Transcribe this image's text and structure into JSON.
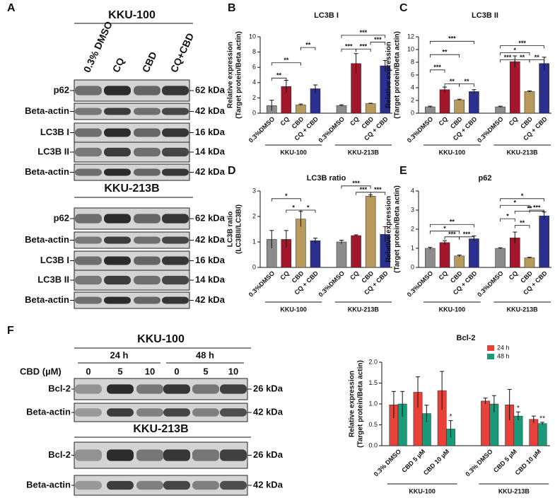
{
  "panel_a": {
    "label": "A",
    "columns": [
      "0.3% DMSO",
      "CQ",
      "CBD",
      "CQ+CBD"
    ],
    "sections": [
      {
        "title": "KKU-100",
        "rows": [
          {
            "name": "p62",
            "kda": "62 kDa"
          },
          {
            "name": "Beta-actin",
            "kda": "42 kDa"
          },
          {
            "name": "LC3B I",
            "kda": "16 kDa"
          },
          {
            "name": "LC3B II",
            "kda": "14 kDa"
          },
          {
            "name": "Beta-actin",
            "kda": "42 kDa"
          }
        ]
      },
      {
        "title": "KKU-213B",
        "rows": [
          {
            "name": "p62",
            "kda": "62 kDa"
          },
          {
            "name": "Beta-actin",
            "kda": "42 kDa"
          },
          {
            "name": "LC3B I",
            "kda": "16 kDa"
          },
          {
            "name": "LC3B II",
            "kda": "14 kDa"
          },
          {
            "name": "Beta-actin",
            "kda": "42 kDa"
          }
        ]
      }
    ]
  },
  "panel_f": {
    "label": "F",
    "times": [
      "24 h",
      "48 h"
    ],
    "dose_label": "CBD (µM)",
    "doses": [
      "0",
      "5",
      "10",
      "0",
      "5",
      "10"
    ],
    "sections": [
      {
        "title": "KKU-100",
        "rows": [
          {
            "name": "Bcl-2",
            "kda": "26 kDa"
          },
          {
            "name": "Beta-actin",
            "kda": "42 kDa"
          }
        ]
      },
      {
        "title": "KKU-213B",
        "rows": [
          {
            "name": "Bcl-2",
            "kda": "26 kDa"
          },
          {
            "name": "Beta-actin",
            "kda": "42 kDa"
          }
        ]
      }
    ]
  },
  "chart_data": [
    {
      "panel": "B",
      "type": "bar",
      "title": "LC3B I",
      "ylabel": [
        "Relative expression",
        "(Target protein/Beta actin)"
      ],
      "categories": [
        "0.3%DMSO",
        "CQ",
        "CBD",
        "CQ + CBD",
        "0.3%DMSO",
        "CQ",
        "CBD",
        "CQ + CBD"
      ],
      "groups": [
        "KKU-100",
        "KKU-213B"
      ],
      "values": [
        1.0,
        3.5,
        1.1,
        3.2,
        1.0,
        6.5,
        1.25,
        6.2
      ],
      "errors": [
        0.7,
        0.8,
        0.1,
        0.5,
        0.1,
        1.3,
        0.05,
        0.7
      ],
      "colors": [
        "#8c8c8c",
        "#a3162b",
        "#b89a5a",
        "#2b2f8e"
      ],
      "ylim": [
        0,
        10
      ],
      "yticks": [
        0,
        2,
        4,
        6,
        8,
        10
      ],
      "brackets": [
        {
          "text": "**",
          "from": 0,
          "to": 1,
          "y": 4.6
        },
        {
          "text": "**",
          "from": 0,
          "to": 2,
          "y": 6.6
        },
        {
          "text": "**",
          "from": 2,
          "to": 3,
          "y": 8.6
        },
        {
          "text": "***",
          "from": 4,
          "to": 7,
          "y": 10.2
        },
        {
          "text": "***",
          "from": 4,
          "to": 5,
          "y": 8.4
        },
        {
          "text": "***",
          "from": 5,
          "to": 6,
          "y": 8.4
        },
        {
          "text": "***",
          "from": 6,
          "to": 7,
          "y": 9.3
        }
      ]
    },
    {
      "panel": "C",
      "type": "bar",
      "title": "LC3B II",
      "ylabel": [
        "Relative expression",
        "(Target protein/Beta actin)"
      ],
      "categories": [
        "0.3%DMSO",
        "CQ",
        "CBD",
        "CQ + CBD",
        "0.3%DMSO",
        "CQ",
        "CBD",
        "CQ + CBD"
      ],
      "groups": [
        "KKU-100",
        "KKU-213B"
      ],
      "values": [
        1.0,
        3.7,
        2.1,
        3.4,
        1.0,
        8.1,
        3.4,
        7.8
      ],
      "errors": [
        0.1,
        0.4,
        0.1,
        0.3,
        0.1,
        0.9,
        0.1,
        1.0
      ],
      "colors": [
        "#8c8c8c",
        "#a3162b",
        "#b89a5a",
        "#2b2f8e"
      ],
      "ylim": [
        0,
        12
      ],
      "yticks": [
        0,
        2,
        4,
        6,
        8,
        10,
        12
      ],
      "brackets": [
        {
          "text": "***",
          "from": 0,
          "to": 3,
          "y": 11.3
        },
        {
          "text": "**",
          "from": 0,
          "to": 2,
          "y": 9.2
        },
        {
          "text": "***",
          "from": 0,
          "to": 1,
          "y": 6.8
        },
        {
          "text": "**",
          "from": 1,
          "to": 2,
          "y": 4.6
        },
        {
          "text": "**",
          "from": 2,
          "to": 3,
          "y": 4.6
        },
        {
          "text": "***",
          "from": 4,
          "to": 7,
          "y": 10.6
        },
        {
          "text": "*",
          "from": 4,
          "to": 6,
          "y": 9.5
        },
        {
          "text": "***",
          "from": 4,
          "to": 5,
          "y": 8.4
        },
        {
          "text": "**",
          "from": 5,
          "to": 6,
          "y": 8.4
        },
        {
          "text": "**",
          "from": 6,
          "to": 7,
          "y": 8.4
        }
      ]
    },
    {
      "panel": "D",
      "type": "bar",
      "title": "LC3B ratio",
      "ylabel": [
        "LC3B ratio",
        "(LC3BII/LC3BI)"
      ],
      "categories": [
        "0.3%DMSO",
        "CQ",
        "CBD",
        "CQ + CBD",
        "0.3%DMSO",
        "CQ",
        "CBD",
        "CQ + CBD"
      ],
      "groups": [
        "KKU-100",
        "KKU-213B"
      ],
      "values": [
        1.1,
        1.1,
        1.9,
        1.05,
        1.0,
        1.25,
        2.8,
        1.3
      ],
      "errors": [
        0.35,
        0.35,
        0.3,
        0.1,
        0.07,
        0.03,
        0.05,
        0.3
      ],
      "colors": [
        "#8c8c8c",
        "#a3162b",
        "#b89a5a",
        "#2b2f8e"
      ],
      "ylim": [
        0,
        3
      ],
      "yticks": [
        0,
        1,
        2,
        3
      ],
      "brackets": [
        {
          "text": "*",
          "from": 0,
          "to": 2,
          "y": 2.7
        },
        {
          "text": "*",
          "from": 1,
          "to": 2,
          "y": 2.25
        },
        {
          "text": "*",
          "from": 2,
          "to": 3,
          "y": 2.25
        },
        {
          "text": "***",
          "from": 4,
          "to": 6,
          "y": 3.2
        },
        {
          "text": "***",
          "from": 5,
          "to": 6,
          "y": 2.95
        },
        {
          "text": "***",
          "from": 6,
          "to": 7,
          "y": 2.95
        }
      ]
    },
    {
      "panel": "E",
      "type": "bar",
      "title": "p62",
      "ylabel": [
        "Relative expression",
        "(Target protein/Beta actin)"
      ],
      "categories": [
        "0.3%DMSO",
        "CQ",
        "CBD",
        "CQ + CBD",
        "0.3%DMSO",
        "CQ",
        "CBD",
        "CQ + CBD"
      ],
      "groups": [
        "KKU-100",
        "KKU-213B"
      ],
      "values": [
        1.0,
        1.3,
        0.6,
        1.5,
        1.0,
        1.55,
        0.5,
        2.7
      ],
      "errors": [
        0.05,
        0.1,
        0.05,
        0.15,
        0.03,
        0.3,
        0.03,
        0.2
      ],
      "colors": [
        "#8c8c8c",
        "#a3162b",
        "#b89a5a",
        "#2b2f8e"
      ],
      "ylim": [
        0,
        4
      ],
      "yticks": [
        0,
        1,
        2,
        3,
        4
      ],
      "brackets": [
        {
          "text": "**",
          "from": 0,
          "to": 3,
          "y": 2.25
        },
        {
          "text": "*",
          "from": 0,
          "to": 2,
          "y": 1.9
        },
        {
          "text": "***",
          "from": 1,
          "to": 2,
          "y": 1.6
        },
        {
          "text": "***",
          "from": 2,
          "to": 3,
          "y": 1.6
        },
        {
          "text": "*",
          "from": 4,
          "to": 7,
          "y": 3.6
        },
        {
          "text": "*",
          "from": 4,
          "to": 6,
          "y": 3.25
        },
        {
          "text": "**",
          "from": 5,
          "to": 7,
          "y": 2.95
        },
        {
          "text": "*",
          "from": 4,
          "to": 5,
          "y": 2.55
        },
        {
          "text": "**",
          "from": 5,
          "to": 6,
          "y": 2.2
        },
        {
          "text": "***",
          "from": 6,
          "to": 7,
          "y": 3.0
        }
      ]
    },
    {
      "type": "bar",
      "title": "Bcl-2",
      "ylabel": [
        "Relative expression",
        "(Target protein/Beta actin)"
      ],
      "categories": [
        "0.3% DMSO",
        "CBD 5 µM",
        "CBD 10 µM",
        "0.3% DMSO",
        "CBD 5 µM",
        "CBD 10 µM"
      ],
      "groups": [
        "KKU-100",
        "KKU-213B"
      ],
      "series": [
        {
          "name": "24 h",
          "color": "#e8413a",
          "values": [
            0.98,
            1.28,
            1.32,
            1.07,
            0.98,
            0.63
          ],
          "errors": [
            0.32,
            0.37,
            0.46,
            0.07,
            0.37,
            0.08
          ]
        },
        {
          "name": "48 h",
          "color": "#1b9a7a",
          "values": [
            1.0,
            0.77,
            0.4,
            1.0,
            0.71,
            0.53
          ],
          "errors": [
            0.3,
            0.2,
            0.2,
            0.2,
            0.1,
            0.03
          ]
        }
      ],
      "ylim": [
        0,
        2
      ],
      "yticks": [
        {
          "value": 0,
          "label": "0.0"
        },
        0.5,
        {
          "value": 1,
          "label": "1.0"
        },
        1.5,
        {
          "value": 2,
          "label": "2.0"
        }
      ],
      "legend": "upper-center",
      "marks": [
        {
          "series": 1,
          "index": 2,
          "text": "*"
        },
        {
          "series": 1,
          "index": 4,
          "text": "*"
        },
        {
          "series": 1,
          "index": 5,
          "text": "**"
        }
      ]
    }
  ]
}
